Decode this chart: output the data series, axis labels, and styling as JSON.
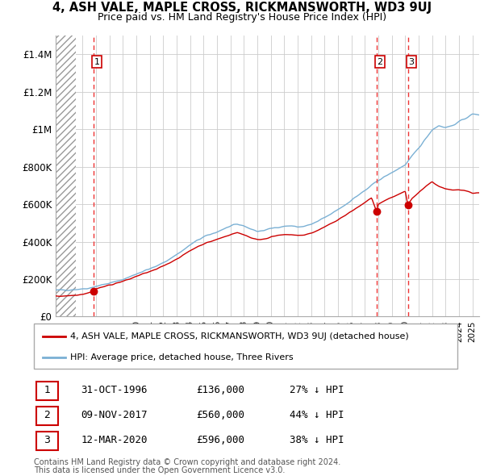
{
  "title": "4, ASH VALE, MAPLE CROSS, RICKMANSWORTH, WD3 9UJ",
  "subtitle": "Price paid vs. HM Land Registry's House Price Index (HPI)",
  "legend_label_red": "4, ASH VALE, MAPLE CROSS, RICKMANSWORTH, WD3 9UJ (detached house)",
  "legend_label_blue": "HPI: Average price, detached house, Three Rivers",
  "footnote1": "Contains HM Land Registry data © Crown copyright and database right 2024.",
  "footnote2": "This data is licensed under the Open Government Licence v3.0.",
  "transactions": [
    {
      "num": 1,
      "date": "31-OCT-1996",
      "price": "£136,000",
      "hpi": "27% ↓ HPI",
      "year": 1996.83
    },
    {
      "num": 2,
      "date": "09-NOV-2017",
      "price": "£560,000",
      "hpi": "44% ↓ HPI",
      "year": 2017.86
    },
    {
      "num": 3,
      "date": "12-MAR-2020",
      "price": "£596,000",
      "hpi": "38% ↓ HPI",
      "year": 2020.19
    }
  ],
  "transaction_prices": [
    136000,
    560000,
    596000
  ],
  "transaction_years": [
    1996.83,
    2017.86,
    2020.19
  ],
  "ylim": [
    0,
    1500000
  ],
  "yticks": [
    0,
    200000,
    400000,
    600000,
    800000,
    1000000,
    1200000,
    1400000
  ],
  "ytick_labels": [
    "£0",
    "£200K",
    "£400K",
    "£600K",
    "£800K",
    "£1M",
    "£1.2M",
    "£1.4M"
  ],
  "xmin": 1994,
  "xmax": 2025.5,
  "background_hatch_xmax": 1995.5,
  "red_color": "#cc0000",
  "blue_color": "#7ab0d4",
  "dashed_line_color": "#ee3333",
  "hpi_years": [
    1994,
    1994.5,
    1995,
    1995.5,
    1996,
    1996.5,
    1997,
    1997.5,
    1998,
    1998.5,
    1999,
    1999.5,
    2000,
    2000.5,
    2001,
    2001.5,
    2002,
    2002.5,
    2003,
    2003.5,
    2004,
    2004.5,
    2005,
    2005.5,
    2006,
    2006.5,
    2007,
    2007.5,
    2008,
    2008.5,
    2009,
    2009.5,
    2010,
    2010.5,
    2011,
    2011.5,
    2012,
    2012.5,
    2013,
    2013.5,
    2014,
    2014.5,
    2015,
    2015.5,
    2016,
    2016.5,
    2017,
    2017.5,
    2018,
    2018.5,
    2019,
    2019.5,
    2020,
    2020.5,
    2021,
    2021.5,
    2022,
    2022.5,
    2023,
    2023.5,
    2024,
    2024.5,
    2025
  ],
  "hpi_vals": [
    140000,
    142000,
    143000,
    145000,
    148000,
    152000,
    162000,
    170000,
    178000,
    187000,
    198000,
    212000,
    228000,
    242000,
    255000,
    268000,
    288000,
    308000,
    332000,
    355000,
    382000,
    405000,
    425000,
    438000,
    452000,
    468000,
    482000,
    492000,
    485000,
    468000,
    455000,
    460000,
    470000,
    478000,
    482000,
    485000,
    478000,
    482000,
    492000,
    508000,
    528000,
    548000,
    572000,
    595000,
    622000,
    648000,
    672000,
    700000,
    728000,
    748000,
    768000,
    790000,
    810000,
    855000,
    900000,
    948000,
    998000,
    1020000,
    1010000,
    1020000,
    1040000,
    1060000,
    1080000
  ],
  "red_years": [
    1994,
    1994.5,
    1995,
    1995.5,
    1996,
    1996.5,
    1996.83,
    1997,
    1997.5,
    1998,
    1998.5,
    1999,
    1999.5,
    2000,
    2000.5,
    2001,
    2001.5,
    2002,
    2002.5,
    2003,
    2003.5,
    2004,
    2004.5,
    2005,
    2005.5,
    2006,
    2006.5,
    2007,
    2007.5,
    2008,
    2008.5,
    2009,
    2009.5,
    2010,
    2010.5,
    2011,
    2011.5,
    2012,
    2012.5,
    2013,
    2013.5,
    2014,
    2014.5,
    2015,
    2015.5,
    2016,
    2016.5,
    2017,
    2017.5,
    2017.86,
    2018,
    2018.5,
    2019,
    2019.5,
    2020,
    2020.19,
    2020.5,
    2021,
    2021.5,
    2022,
    2022.5,
    2023,
    2023.5,
    2024,
    2024.5,
    2025
  ],
  "red_vals": [
    108000,
    110000,
    112000,
    115000,
    120000,
    128000,
    136000,
    148000,
    158000,
    168000,
    178000,
    188000,
    200000,
    215000,
    228000,
    240000,
    252000,
    270000,
    288000,
    308000,
    328000,
    352000,
    372000,
    388000,
    400000,
    412000,
    425000,
    438000,
    448000,
    438000,
    422000,
    410000,
    415000,
    425000,
    432000,
    436000,
    438000,
    432000,
    436000,
    445000,
    460000,
    478000,
    496000,
    518000,
    538000,
    562000,
    585000,
    608000,
    635000,
    560000,
    598000,
    618000,
    635000,
    652000,
    668000,
    596000,
    630000,
    662000,
    695000,
    720000,
    695000,
    680000,
    675000,
    680000,
    672000,
    660000
  ]
}
